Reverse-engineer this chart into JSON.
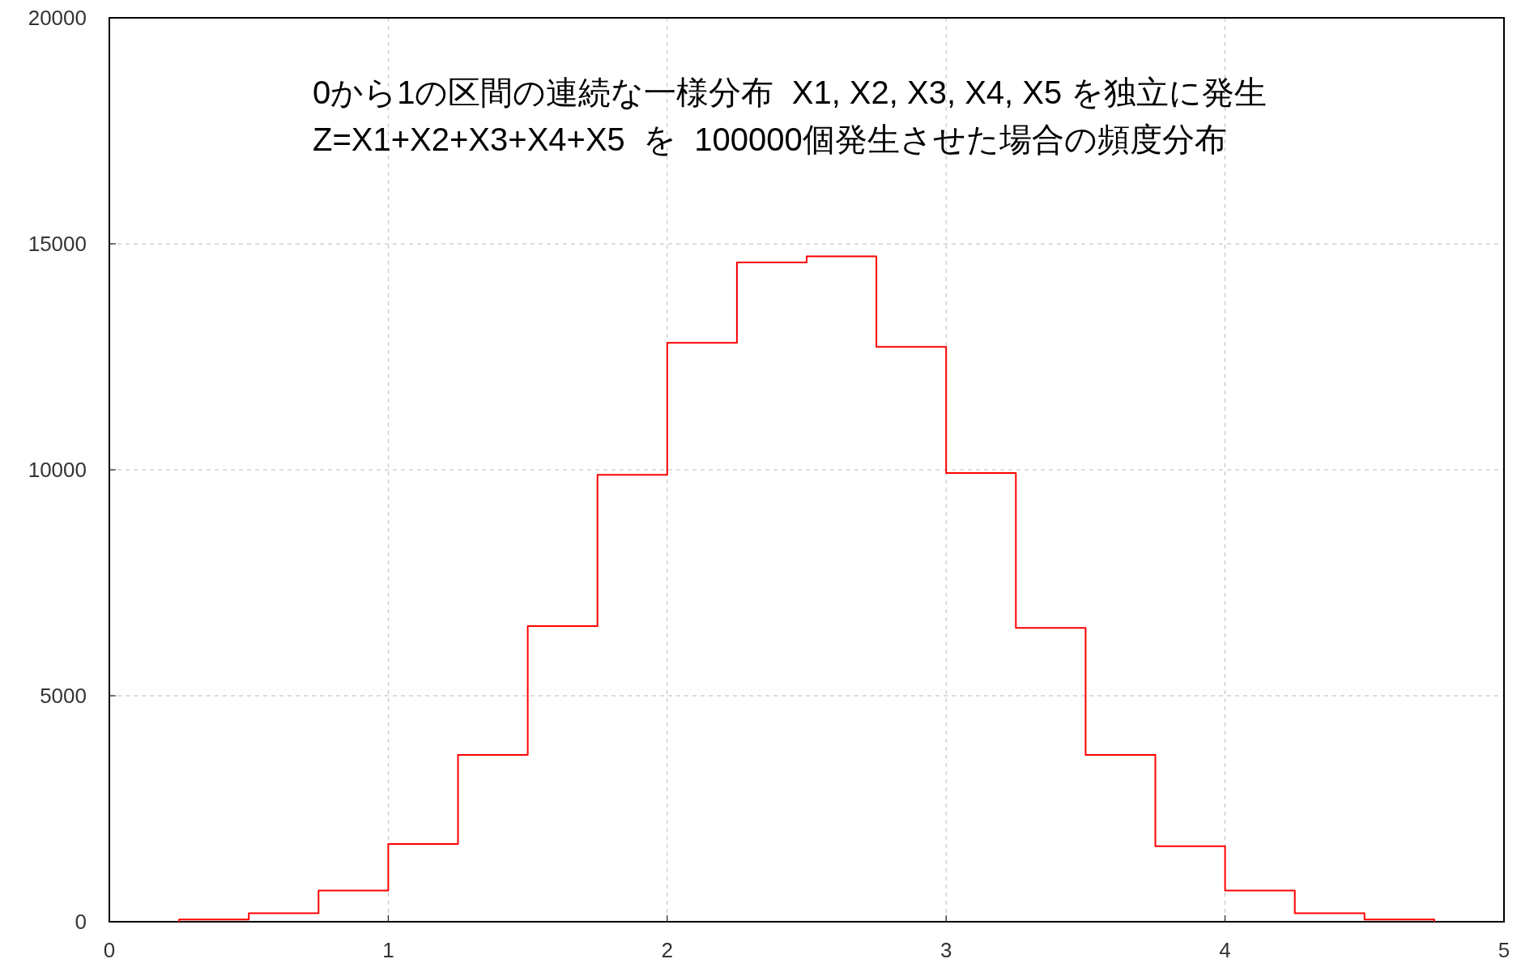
{
  "chart_data": {
    "type": "histogram",
    "color": "#ff0000",
    "bins": [
      0.25,
      0.5,
      0.75,
      1,
      1.25,
      1.5,
      1.75,
      2,
      2.25,
      2.5,
      2.75,
      3,
      3.25,
      3.5,
      3.75,
      4,
      4.25,
      4.5,
      4.75
    ],
    "values": [
      50,
      190,
      690,
      1720,
      3690,
      6540,
      9890,
      12810,
      14590,
      14720,
      12720,
      9930,
      6500,
      3690,
      1670,
      690,
      190,
      50
    ],
    "xlim": [
      0,
      5
    ],
    "xticks": [
      0,
      1,
      2,
      3,
      4,
      5
    ],
    "ylim": [
      0,
      20000
    ],
    "yticks": [
      0,
      5000,
      10000,
      15000,
      20000
    ],
    "grid": true,
    "annotations": [
      "0から1の区間の連続な一様分布  X1, X2, X3, X4, X5 を独立に発生",
      "Z=X1+X2+X3+X4+X5  を  100000個発生させた場合の頻度分布"
    ]
  }
}
